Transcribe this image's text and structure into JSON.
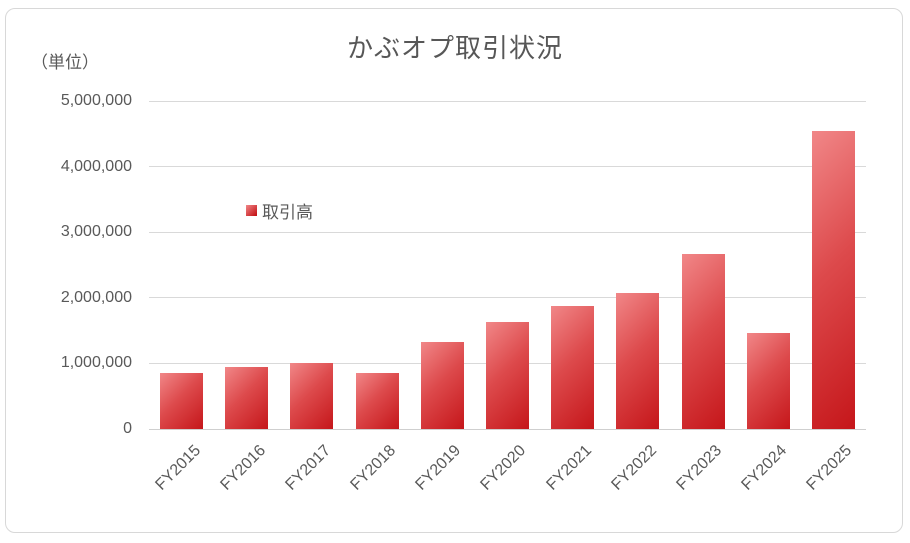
{
  "chart_data": {
    "type": "bar",
    "title": "かぶオプ取引状況",
    "unit_label": "（単位）",
    "legend_label": "取引高",
    "legend_position": "inside-left",
    "grid": true,
    "categories": [
      "FY2015",
      "FY2016",
      "FY2017",
      "FY2018",
      "FY2019",
      "FY2020",
      "FY2021",
      "FY2022",
      "FY2023",
      "FY2024",
      "FY2025"
    ],
    "series": [
      {
        "name": "取引高",
        "values": [
          850000,
          950000,
          1000000,
          850000,
          1330000,
          1630000,
          1870000,
          2070000,
          2670000,
          1460000,
          4550000
        ]
      }
    ],
    "xlabel": "",
    "ylabel": "（単位）",
    "ylim": [
      0,
      5000000
    ],
    "ytick_interval": 1000000,
    "yticks": [
      "0",
      "1,000,000",
      "2,000,000",
      "3,000,000",
      "4,000,000",
      "5,000,000"
    ],
    "colors": {
      "bar_gradient_top": "#f18788",
      "bar_gradient_mid": "#dd4a4c",
      "bar_gradient_bottom": "#c5161a",
      "gridline": "#d9d9d9",
      "text": "#595959",
      "title_text": "#575757",
      "frame_border": "#d8d8d8",
      "background": "#ffffff"
    }
  }
}
